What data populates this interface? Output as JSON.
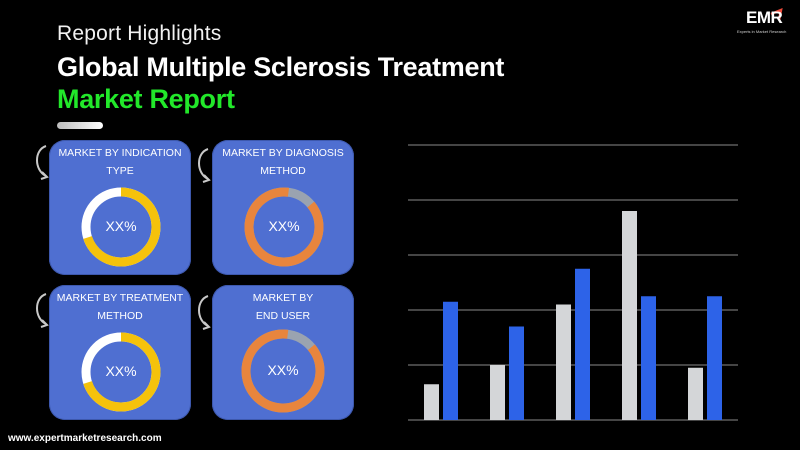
{
  "header": {
    "kicker": "Report Highlights",
    "title_line1": "Global Multiple Sclerosis Treatment",
    "title_line2": "Market Report"
  },
  "logo": {
    "text": "EMR",
    "tagline": "Experts in Market Research"
  },
  "cards": [
    {
      "label_line1": "MARKET BY INDICATION",
      "label_line2": "TYPE",
      "value": "XX%",
      "ring_color": "#f5c20b",
      "ring_level": 0.7
    },
    {
      "label_line1": "MARKET BY DIAGNOSIS",
      "label_line2": "METHOD",
      "value": "XX%",
      "ring_color": "#e8853d",
      "ring_level": 0.88
    },
    {
      "label_line1": "MARKET BY TREATMENT",
      "label_line2": "METHOD",
      "value": "XX%",
      "ring_color": "#f5c20b",
      "ring_level": 0.7
    },
    {
      "label_line1": "MARKET BY",
      "label_line2": "END USER",
      "value": "XX%",
      "ring_color": "#e8853d",
      "ring_level": 0.88
    }
  ],
  "footer": {
    "url": "www.expertmarketresearch.com"
  },
  "colors": {
    "card_bg": "#4f6fd1",
    "accent_green": "#22e82a",
    "bar_gray": "#d4d6d8",
    "bar_blue": "#2d63e8"
  },
  "chart_data": {
    "type": "bar",
    "categories": [
      "",
      "",
      "",
      "",
      ""
    ],
    "series": [
      {
        "values": [
          13,
          20,
          42,
          76,
          19
        ]
      },
      {
        "values": [
          43,
          34,
          55,
          45,
          45
        ]
      }
    ],
    "ylim": [
      0,
      100
    ],
    "grid": true
  }
}
